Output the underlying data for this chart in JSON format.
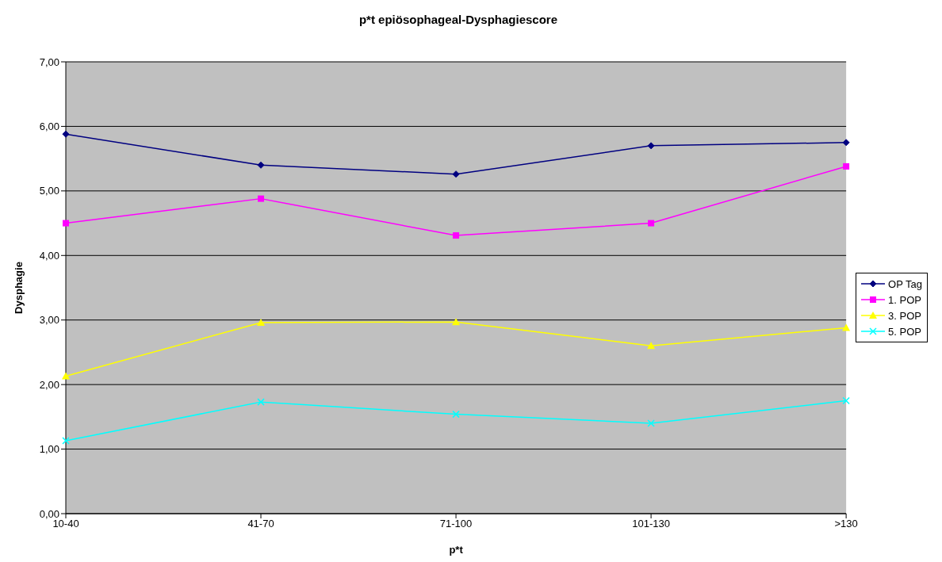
{
  "chart_data": {
    "type": "line",
    "title": "p*t epiösophageal-Dysphagiescore",
    "xlabel": "p*t",
    "ylabel": "Dysphagie",
    "categories": [
      "10-40",
      "41-70",
      "71-100",
      "101-130",
      ">130"
    ],
    "series": [
      {
        "name": "OP Tag",
        "color": "#000080",
        "marker": "diamond",
        "values": [
          5.88,
          5.4,
          5.26,
          5.7,
          5.75
        ]
      },
      {
        "name": "1. POP",
        "color": "#ff00ff",
        "marker": "square",
        "values": [
          4.5,
          4.88,
          4.31,
          4.5,
          5.38
        ]
      },
      {
        "name": "3. POP",
        "color": "#ffff00",
        "marker": "triangle",
        "values": [
          2.13,
          2.96,
          2.97,
          2.6,
          2.88
        ]
      },
      {
        "name": "5. POP",
        "color": "#00ffff",
        "marker": "cross",
        "values": [
          1.13,
          1.73,
          1.54,
          1.4,
          1.75
        ]
      }
    ],
    "ylim": [
      0,
      7
    ],
    "yticks": [
      {
        "value": 0,
        "label": "0,00"
      },
      {
        "value": 1,
        "label": "1,00"
      },
      {
        "value": 2,
        "label": "2,00"
      },
      {
        "value": 3,
        "label": "3,00"
      },
      {
        "value": 4,
        "label": "4,00"
      },
      {
        "value": 5,
        "label": "5,00"
      },
      {
        "value": 6,
        "label": "6,00"
      },
      {
        "value": 7,
        "label": "7,00"
      }
    ],
    "grid": "y",
    "legend": "right"
  }
}
